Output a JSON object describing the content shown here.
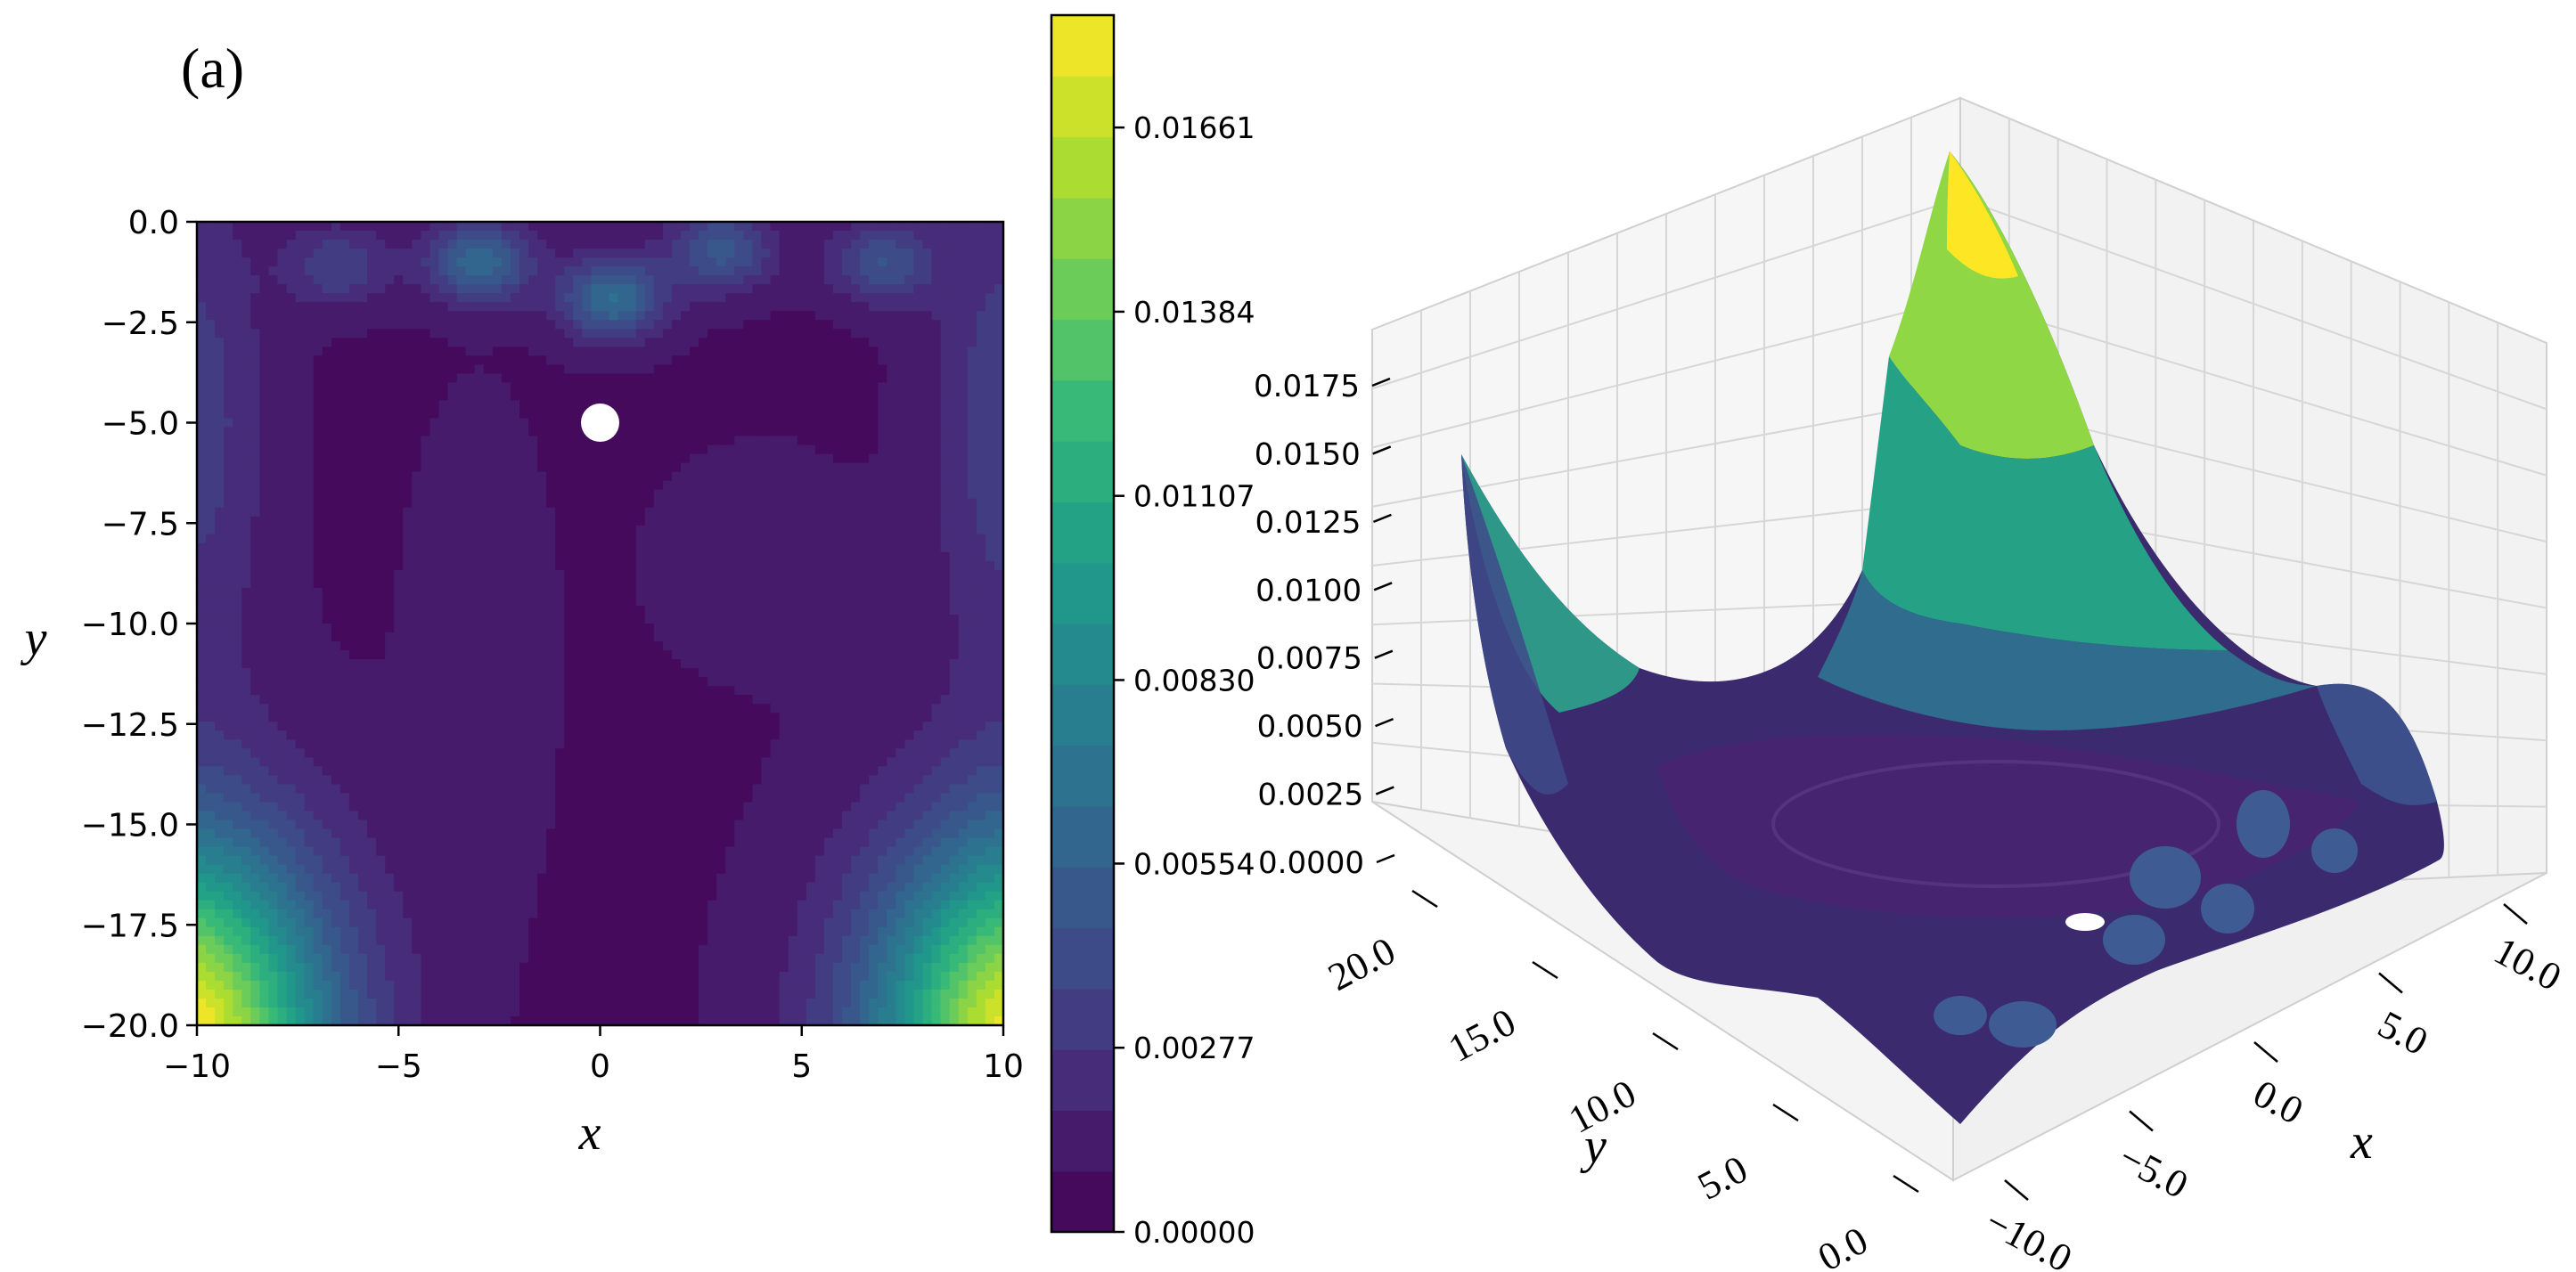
{
  "figure": {
    "panel_label": "(a)"
  },
  "chart_data": [
    {
      "type": "heatmap",
      "subtype": "filled-contour",
      "xlabel": "x",
      "ylabel": "y",
      "xlim": [
        -10,
        10
      ],
      "ylim": [
        -20,
        0
      ],
      "x_ticks": [
        -10,
        -5,
        0,
        5,
        10
      ],
      "x_tick_labels": [
        "−10",
        "−5",
        "0",
        "5",
        "10"
      ],
      "y_ticks": [
        0,
        -2.5,
        -5,
        -7.5,
        -10,
        -12.5,
        -15,
        -17.5,
        -20
      ],
      "y_tick_labels": [
        "0.0",
        "−2.5",
        "−5.0",
        "−7.5",
        "−10.0",
        "−12.5",
        "−15.0",
        "−17.5",
        "−20.0"
      ],
      "colormap": "viridis",
      "color_range": [
        0,
        0.0183
      ],
      "colorbar_ticks": [
        0,
        0.00277,
        0.00554,
        0.0083,
        0.01107,
        0.01384,
        0.01661
      ],
      "colorbar_tick_labels": [
        "0.00000",
        "0.00277",
        "0.00554",
        "0.00830",
        "0.01107",
        "0.01384",
        "0.01661"
      ],
      "hole": {
        "x": 0,
        "y": -5,
        "radius": 0.5
      },
      "peaks": [
        {
          "x": -3,
          "y": -1,
          "value": 0.0063
        },
        {
          "x": 0.3,
          "y": -1.9,
          "value": 0.0065
        },
        {
          "x": 3,
          "y": -0.7,
          "value": 0.005
        },
        {
          "x": 7,
          "y": -1,
          "value": 0.0045
        },
        {
          "x": -6.5,
          "y": -1.1,
          "value": 0.0036
        },
        {
          "x": -10,
          "y": -20,
          "value": 0.0183
        },
        {
          "x": 10,
          "y": -20,
          "value": 0.0176
        }
      ]
    },
    {
      "type": "surface",
      "xlabel": "x",
      "ylabel": "y",
      "x_ticks": [
        -10,
        -5,
        0,
        5,
        10
      ],
      "x_tick_labels": [
        "−10.0",
        "−5.0",
        "0.0",
        "5.0",
        "10.0"
      ],
      "y_ticks": [
        0,
        5,
        10,
        15,
        20
      ],
      "y_tick_labels": [
        "0.0",
        "5.0",
        "10.0",
        "15.0",
        "20.0"
      ],
      "z_ticks": [
        0,
        0.0025,
        0.005,
        0.0075,
        0.01,
        0.0125,
        0.015,
        0.0175
      ],
      "z_tick_labels": [
        "0.0000",
        "0.0025",
        "0.0050",
        "0.0075",
        "0.0100",
        "0.0125",
        "0.0150",
        "0.0175"
      ],
      "colormap": "viridis",
      "grid": true
    }
  ]
}
